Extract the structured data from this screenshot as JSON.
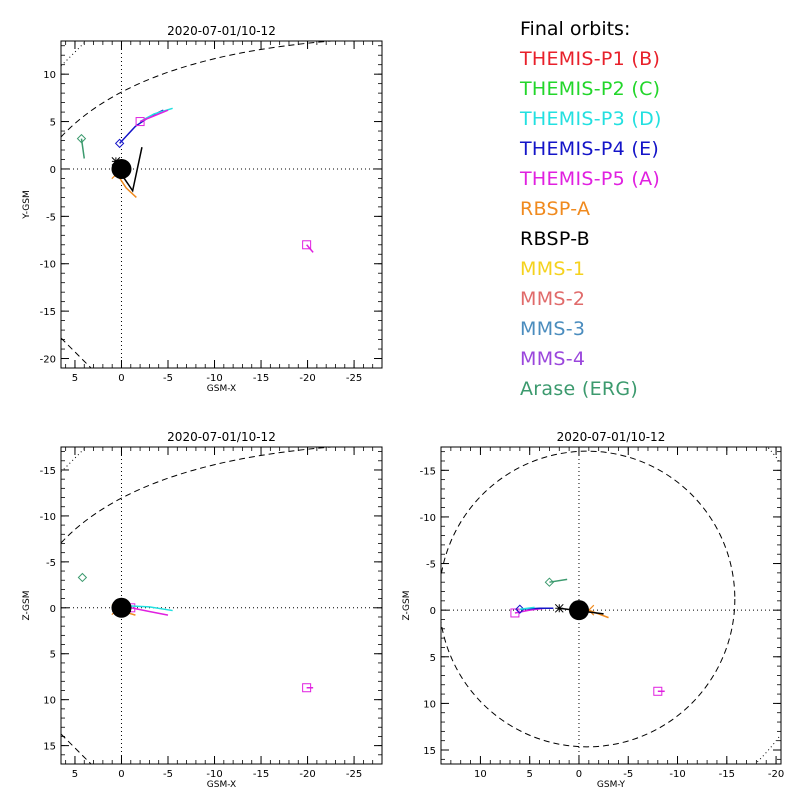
{
  "legend": {
    "title": "Final orbits:",
    "items": [
      {
        "label": "THEMIS-P1 (B)",
        "color": "#e8202a"
      },
      {
        "label": "THEMIS-P2 (C)",
        "color": "#22d62a"
      },
      {
        "label": "THEMIS-P3 (D)",
        "color": "#22e0e0"
      },
      {
        "label": "THEMIS-P4 (E)",
        "color": "#1414c8"
      },
      {
        "label": "THEMIS-P5 (A)",
        "color": "#e020e0"
      },
      {
        "label": "RBSP-A",
        "color": "#f08a1e"
      },
      {
        "label": "RBSP-B",
        "color": "#000000"
      },
      {
        "label": "MMS-1",
        "color": "#f5d21e"
      },
      {
        "label": "MMS-2",
        "color": "#e06a6a"
      },
      {
        "label": "MMS-3",
        "color": "#4a8cbe"
      },
      {
        "label": "MMS-4",
        "color": "#9a46dc"
      },
      {
        "label": "Arase (ERG)",
        "color": "#3c9a6e"
      }
    ]
  },
  "chart_data": [
    {
      "type": "scatter",
      "title": "2020-07-01/10-12",
      "xlabel": "GSM-X",
      "ylabel": "Y-GSM",
      "xlim": [
        6.5,
        -28
      ],
      "ylim": [
        13.5,
        -21
      ],
      "xticks": [
        5,
        0,
        -5,
        -10,
        -15,
        -20,
        -25
      ],
      "yticks": [
        -20,
        -15,
        -10,
        -5,
        0,
        5,
        10
      ],
      "series": [
        {
          "color": "#1414c8",
          "x": [
            0.2,
            -1.5,
            -3.0,
            -4.5
          ],
          "y": [
            2.7,
            4.5,
            5.5,
            6.2
          ],
          "marker": "diamond"
        },
        {
          "color": "#22e0e0",
          "x": [
            -2.0,
            -3.5,
            -5.5
          ],
          "y": [
            5.0,
            5.8,
            6.4
          ]
        },
        {
          "color": "#e020e0",
          "x": [
            -2.0,
            -3.5,
            -5.0
          ],
          "y": [
            5.0,
            5.6,
            6.2
          ],
          "marker": "square"
        },
        {
          "color": "#f08a1e",
          "x": [
            0.5,
            -0.5,
            -1.6
          ],
          "y": [
            -0.5,
            -2.0,
            -3.0
          ],
          "marker": "x"
        },
        {
          "color": "#000000",
          "x": [
            0.6,
            -0.3,
            -1.2,
            -2.2
          ],
          "y": [
            0.8,
            -1.0,
            -2.3,
            2.3
          ],
          "marker": "star"
        },
        {
          "color": "#3c9a6e",
          "x": [
            4.3,
            4.0
          ],
          "y": [
            3.2,
            1.1
          ],
          "marker": "diamond"
        },
        {
          "color": "#e020e0",
          "x": [
            -19.9,
            -20.6
          ],
          "y": [
            -8.0,
            -8.8
          ],
          "marker": "square"
        }
      ]
    },
    {
      "type": "scatter",
      "title": "2020-07-01/10-12",
      "xlabel": "GSM-X",
      "ylabel": "Z-GSM",
      "xlim": [
        6.5,
        -28
      ],
      "ylim": [
        -17.5,
        17
      ],
      "xticks": [
        5,
        0,
        -5,
        -10,
        -15,
        -20,
        -25
      ],
      "yticks": [
        -15,
        -10,
        -5,
        0,
        5,
        10,
        15
      ],
      "series": [
        {
          "color": "#e020e0",
          "x": [
            -1.0,
            -3.0,
            -5.0
          ],
          "y": [
            0.0,
            0.4,
            0.8
          ],
          "marker": "square"
        },
        {
          "color": "#22e0e0",
          "x": [
            -1.0,
            -3.0,
            -5.5
          ],
          "y": [
            -0.2,
            -0.1,
            0.3
          ]
        },
        {
          "color": "#f08a1e",
          "x": [
            0.5,
            -1.5
          ],
          "y": [
            0.2,
            0.8
          ],
          "marker": "x"
        },
        {
          "color": "#000000",
          "x": [
            0.3,
            -1.0
          ],
          "y": [
            0.0,
            0.4
          ],
          "marker": "star"
        },
        {
          "color": "#3c9a6e",
          "x": [
            4.2
          ],
          "y": [
            -3.3
          ],
          "marker": "diamond"
        },
        {
          "color": "#e020e0",
          "x": [
            -19.9,
            -20.6
          ],
          "y": [
            8.7,
            8.7
          ],
          "marker": "square"
        }
      ]
    },
    {
      "type": "scatter",
      "title": "2020-07-01/10-12",
      "xlabel": "GSM-Y",
      "ylabel": "Z-GSM",
      "xlim": [
        14,
        -20.5
      ],
      "ylim": [
        -17.5,
        16.5
      ],
      "xticks": [
        10,
        5,
        0,
        -5,
        -10,
        -15,
        -20
      ],
      "yticks": [
        -15,
        -10,
        -5,
        0,
        5,
        10,
        15
      ],
      "series": [
        {
          "color": "#e020e0",
          "x": [
            6.5,
            5.0,
            3.5
          ],
          "y": [
            0.3,
            0.0,
            -0.2
          ],
          "marker": "square"
        },
        {
          "color": "#1414c8",
          "x": [
            6.0,
            4.0,
            2.6
          ],
          "y": [
            -0.1,
            -0.2,
            -0.2
          ],
          "marker": "diamond"
        },
        {
          "color": "#22e0e0",
          "x": [
            6.0,
            4.5
          ],
          "y": [
            -0.1,
            -0.3
          ]
        },
        {
          "color": "#f08a1e",
          "x": [
            -1.0,
            -3.0
          ],
          "y": [
            0.0,
            0.8
          ],
          "marker": "x"
        },
        {
          "color": "#000000",
          "x": [
            2.0,
            -2.5
          ],
          "y": [
            -0.2,
            0.4
          ],
          "marker": "star"
        },
        {
          "color": "#3c9a6e",
          "x": [
            3.0,
            1.2
          ],
          "y": [
            -3.0,
            -3.3
          ],
          "marker": "diamond"
        },
        {
          "color": "#e020e0",
          "x": [
            -8.0,
            -8.7
          ],
          "y": [
            8.7,
            8.7
          ],
          "marker": "square"
        }
      ]
    }
  ]
}
